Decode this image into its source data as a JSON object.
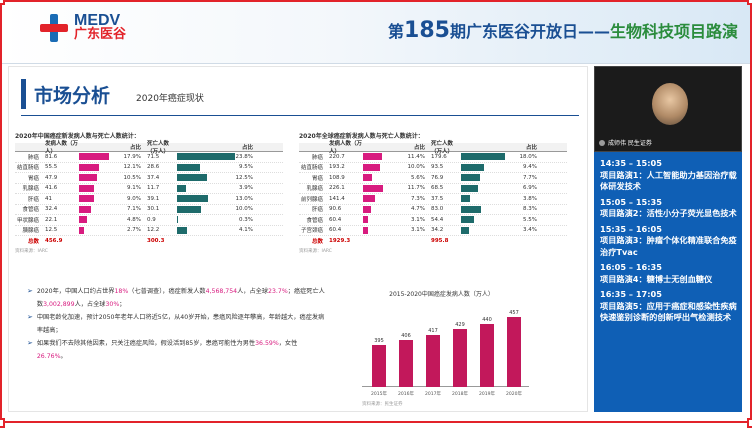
{
  "header": {
    "logo_en": "MEDV",
    "logo_cn": "广东医谷",
    "title_prefix": "第",
    "title_num": "185",
    "title_mid": "期广东医谷开放日——",
    "title_green": "生物科技项目路演"
  },
  "slide": {
    "title": "市场分析",
    "subtitle": "2020年癌症现状",
    "table1": {
      "title": "2020年中国癌症新发病人数与死亡人数统计：",
      "col_new": "发病人数（万人）",
      "col_pct": "占比",
      "col_death": "死亡人数（万人）",
      "col_pct2": "占比",
      "rows": [
        {
          "name": "肺癌",
          "new": "81.6",
          "new_pct": "17.9%",
          "new_frac": 0.179,
          "death": "71.5",
          "death_pct": "23.8%",
          "death_frac": 0.238
        },
        {
          "name": "结直肠癌",
          "new": "55.5",
          "new_pct": "12.1%",
          "new_frac": 0.121,
          "death": "28.6",
          "death_pct": "9.5%",
          "death_frac": 0.095
        },
        {
          "name": "胃癌",
          "new": "47.9",
          "new_pct": "10.5%",
          "new_frac": 0.105,
          "death": "37.4",
          "death_pct": "12.5%",
          "death_frac": 0.125
        },
        {
          "name": "乳腺癌",
          "new": "41.6",
          "new_pct": "9.1%",
          "new_frac": 0.091,
          "death": "11.7",
          "death_pct": "3.9%",
          "death_frac": 0.039
        },
        {
          "name": "肝癌",
          "new": "41",
          "new_pct": "9.0%",
          "new_frac": 0.09,
          "death": "39.1",
          "death_pct": "13.0%",
          "death_frac": 0.13
        },
        {
          "name": "食管癌",
          "new": "32.4",
          "new_pct": "7.1%",
          "new_frac": 0.071,
          "death": "30.1",
          "death_pct": "10.0%",
          "death_frac": 0.1
        },
        {
          "name": "甲状腺癌",
          "new": "22.1",
          "new_pct": "4.8%",
          "new_frac": 0.048,
          "death": "0.9",
          "death_pct": "0.3%",
          "death_frac": 0.003
        },
        {
          "name": "胰腺癌",
          "new": "12.5",
          "new_pct": "2.7%",
          "new_frac": 0.027,
          "death": "12.2",
          "death_pct": "4.1%",
          "death_frac": 0.041
        }
      ],
      "total_label": "总数",
      "total_new": "456.9",
      "total_death": "300.3",
      "source": "资料来源：IARC"
    },
    "table2": {
      "title": "2020年全球癌症新发病人数与死亡人数统计：",
      "col_new": "发病人数（万人）",
      "col_pct": "占比",
      "col_death": "死亡人数（万人）",
      "col_pct2": "占比",
      "rows": [
        {
          "name": "肺癌",
          "new": "220.7",
          "new_pct": "11.4%",
          "new_frac": 0.114,
          "death": "179.6",
          "death_pct": "18.0%",
          "death_frac": 0.18
        },
        {
          "name": "结直肠癌",
          "new": "193.2",
          "new_pct": "10.0%",
          "new_frac": 0.1,
          "death": "93.5",
          "death_pct": "9.4%",
          "death_frac": 0.094
        },
        {
          "name": "胃癌",
          "new": "108.9",
          "new_pct": "5.6%",
          "new_frac": 0.056,
          "death": "76.9",
          "death_pct": "7.7%",
          "death_frac": 0.077
        },
        {
          "name": "乳腺癌",
          "new": "226.1",
          "new_pct": "11.7%",
          "new_frac": 0.117,
          "death": "68.5",
          "death_pct": "6.9%",
          "death_frac": 0.069
        },
        {
          "name": "前列腺癌",
          "new": "141.4",
          "new_pct": "7.3%",
          "new_frac": 0.073,
          "death": "37.5",
          "death_pct": "3.8%",
          "death_frac": 0.038
        },
        {
          "name": "肝癌",
          "new": "90.6",
          "new_pct": "4.7%",
          "new_frac": 0.047,
          "death": "83.0",
          "death_pct": "8.3%",
          "death_frac": 0.083
        },
        {
          "name": "食管癌",
          "new": "60.4",
          "new_pct": "3.1%",
          "new_frac": 0.031,
          "death": "54.4",
          "death_pct": "5.5%",
          "death_frac": 0.055
        },
        {
          "name": "子宫颈癌",
          "new": "60.4",
          "new_pct": "3.1%",
          "new_frac": 0.031,
          "death": "34.2",
          "death_pct": "3.4%",
          "death_frac": 0.034
        }
      ],
      "total_label": "总数",
      "total_new": "1929.3",
      "total_death": "995.8",
      "source": "资料来源：IARC"
    },
    "bullets": [
      {
        "parts": [
          {
            "t": "2020年，中国人口约占世界"
          },
          {
            "t": "18%",
            "red": true
          },
          {
            "t": "（七普调查），癌症新发人数"
          },
          {
            "t": "4,568,754",
            "red": true
          },
          {
            "t": "人，占全球"
          },
          {
            "t": "23.7%",
            "red": true
          },
          {
            "t": "；癌症死亡人数"
          },
          {
            "t": "3,002,899",
            "red": true
          },
          {
            "t": "人，占全球"
          },
          {
            "t": "30%",
            "red": true
          },
          {
            "t": "；"
          }
        ]
      },
      {
        "parts": [
          {
            "t": "中国老龄化加速，预计2050年老年人口将近5亿，从40岁开始，患癌风险逐年攀高，年龄越大，癌症发病率越高；"
          }
        ]
      },
      {
        "parts": [
          {
            "t": "如果我们不去除其他因素，只关注癌症风险，假设活到85岁，患癌可能性为男性"
          },
          {
            "t": "36.59%",
            "red": true
          },
          {
            "t": "，女性"
          },
          {
            "t": "26.76%",
            "red": true
          },
          {
            "t": "。"
          }
        ]
      }
    ],
    "chart_data": {
      "type": "bar",
      "title": "2015-2020中国癌症发病人数（万人）",
      "categories": [
        "2015年",
        "2016年",
        "2017年",
        "2018年",
        "2019年",
        "2020年"
      ],
      "values": [
        395,
        406,
        417,
        429,
        440,
        457
      ],
      "ylim": [
        300,
        470
      ],
      "source": "资料来源：民生证券"
    }
  },
  "video": {
    "label": "成师伟 民生证券"
  },
  "schedule": [
    {
      "time": "14:35 – 15:05",
      "text": "项目路演1：人工智能助力基因治疗载体研发技术"
    },
    {
      "time": "15:05 – 15:35",
      "text": "项目路演2：活性小分子荧光显色技术"
    },
    {
      "time": "15:35 – 16:05",
      "text": "项目路演3：肿瘤个体化精准联合免疫治疗Tvac"
    },
    {
      "time": "16:05 – 16:35",
      "text": "项目路演4：糖博士无创血糖仪"
    },
    {
      "time": "16:35 – 17:05",
      "text": "项目路演5：应用于癌症和感染性疾病快速鉴别诊断的创新呼出气检测技术"
    }
  ]
}
